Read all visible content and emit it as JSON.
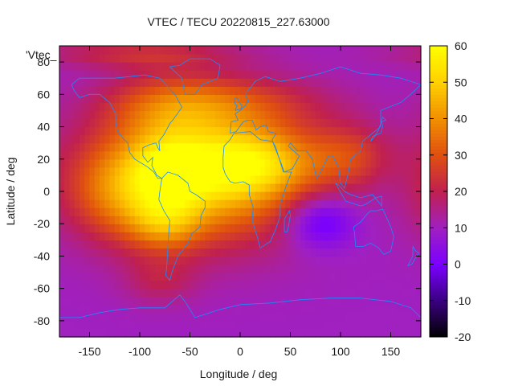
{
  "chart_data": {
    "type": "heatmap",
    "title": "VTEC / TECU 20220815_227.63000",
    "xlabel": "Longitude / deg",
    "ylabel": "Latitude / deg",
    "series_label": "'Vtec_",
    "xlim": [
      -180,
      180
    ],
    "ylim": [
      -90,
      90
    ],
    "x_ticks": [
      -150,
      -100,
      -50,
      0,
      50,
      100,
      150
    ],
    "y_ticks": [
      -80,
      -60,
      -40,
      -20,
      0,
      20,
      40,
      60,
      80
    ],
    "colorbar": {
      "range": [
        -20,
        60
      ],
      "ticks": [
        -20,
        -10,
        0,
        10,
        20,
        30,
        40,
        50,
        60
      ],
      "palette": [
        "#000000",
        "#3a0080",
        "#7a00ff",
        "#a020c0",
        "#c02050",
        "#e05010",
        "#f09000",
        "#ffd000",
        "#ffff00"
      ]
    },
    "grid_step_deg": 5,
    "features": [
      {
        "lon": -40,
        "lat": 10,
        "amp": 40,
        "sx": 75,
        "sy": 28
      },
      {
        "lon": 15,
        "lat": 18,
        "amp": 22,
        "sx": 40,
        "sy": 14
      },
      {
        "lon": -70,
        "lat": 12,
        "amp": 18,
        "sx": 25,
        "sy": 15
      },
      {
        "lon": -75,
        "lat": -20,
        "amp": 16,
        "sx": 25,
        "sy": 12
      },
      {
        "lon": -120,
        "lat": 0,
        "amp": 14,
        "sx": 35,
        "sy": 20
      },
      {
        "lon": -20,
        "lat": 55,
        "amp": 14,
        "sx": 70,
        "sy": 12
      },
      {
        "lon": -70,
        "lat": 50,
        "amp": 10,
        "sx": 40,
        "sy": 18
      },
      {
        "lon": 110,
        "lat": 22,
        "amp": 14,
        "sx": 30,
        "sy": 14
      },
      {
        "lon": 80,
        "lat": -18,
        "amp": -16,
        "sx": 25,
        "sy": 12
      },
      {
        "lon": -80,
        "lat": -55,
        "amp": 8,
        "sx": 25,
        "sy": 10
      },
      {
        "lon": -100,
        "lat": 85,
        "amp": 12,
        "sx": 70,
        "sy": 6
      }
    ],
    "base_value": 10
  }
}
